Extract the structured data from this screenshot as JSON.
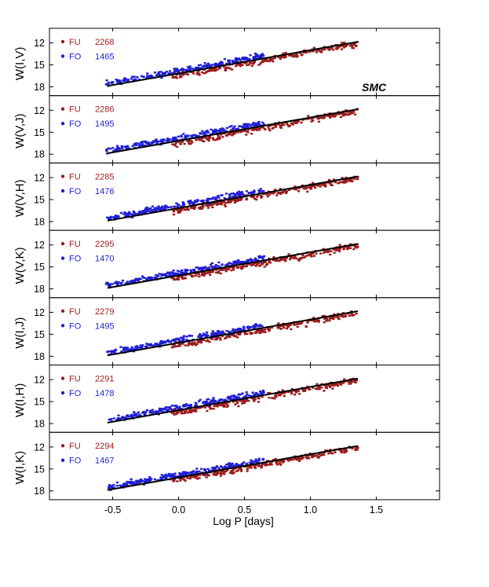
{
  "chart_data": {
    "type": "scatter",
    "title": "",
    "galaxy_label": "SMC",
    "xlabel": "Log P [days]",
    "xlim": [
      -0.98,
      1.98
    ],
    "ylim": [
      19.2,
      10.0
    ],
    "x_ticks": [
      -0.5,
      0.0,
      0.5,
      1.0,
      1.5
    ],
    "x_tick_labels": [
      "-0.5",
      "0.0",
      "0.5",
      "1.0",
      "1.5"
    ],
    "y_ticks": [
      12,
      15,
      18
    ],
    "y_tick_labels": [
      "12",
      "15",
      "18"
    ],
    "legend_position": "top-left",
    "colors": {
      "FU": "#9b1c1c",
      "FO": "#1f1fd6",
      "fit": "#000000"
    },
    "panels": [
      {
        "ylabel": "W(I,V)",
        "series": [
          {
            "name": "FU",
            "count": "2268"
          },
          {
            "name": "FO",
            "count": "1465"
          }
        ],
        "fit": {
          "x": [
            -0.54,
            1.36
          ],
          "y": [
            17.88,
            11.85
          ]
        },
        "show_galaxy_label": true
      },
      {
        "ylabel": "W(V,J)",
        "series": [
          {
            "name": "FU",
            "count": "2286"
          },
          {
            "name": "FO",
            "count": "1495"
          }
        ],
        "fit": {
          "x": [
            -0.54,
            1.36
          ],
          "y": [
            17.88,
            11.85
          ]
        },
        "show_galaxy_label": false
      },
      {
        "ylabel": "W(V,H)",
        "series": [
          {
            "name": "FU",
            "count": "2285"
          },
          {
            "name": "FO",
            "count": "1476"
          }
        ],
        "fit": {
          "x": [
            -0.54,
            1.36
          ],
          "y": [
            17.88,
            11.85
          ]
        },
        "show_galaxy_label": false
      },
      {
        "ylabel": "W(V,K)",
        "series": [
          {
            "name": "FU",
            "count": "2295"
          },
          {
            "name": "FO",
            "count": "1470"
          }
        ],
        "fit": {
          "x": [
            -0.54,
            1.36
          ],
          "y": [
            17.88,
            11.85
          ]
        },
        "show_galaxy_label": false
      },
      {
        "ylabel": "W(I,J)",
        "series": [
          {
            "name": "FU",
            "count": "2279"
          },
          {
            "name": "FO",
            "count": "1495"
          }
        ],
        "fit": {
          "x": [
            -0.54,
            1.36
          ],
          "y": [
            17.88,
            11.85
          ]
        },
        "show_galaxy_label": false
      },
      {
        "ylabel": "W(I,H)",
        "series": [
          {
            "name": "FU",
            "count": "2291"
          },
          {
            "name": "FO",
            "count": "1478"
          }
        ],
        "fit": {
          "x": [
            -0.54,
            1.36
          ],
          "y": [
            17.88,
            11.85
          ]
        },
        "show_galaxy_label": false
      },
      {
        "ylabel": "W(I,K)",
        "series": [
          {
            "name": "FU",
            "count": "2294"
          },
          {
            "name": "FO",
            "count": "1467"
          }
        ],
        "fit": {
          "x": [
            -0.54,
            1.36
          ],
          "y": [
            17.88,
            11.85
          ]
        },
        "show_galaxy_label": false
      }
    ],
    "scatter_model": {
      "FU": {
        "x_range": [
          -0.05,
          1.36
        ],
        "offset": 0.25,
        "scatter": 0.22,
        "points_drawn": 260
      },
      "FO": {
        "x_range": [
          -0.55,
          0.65
        ],
        "offset": -0.35,
        "scatter": 0.2,
        "points_drawn": 220
      }
    }
  }
}
